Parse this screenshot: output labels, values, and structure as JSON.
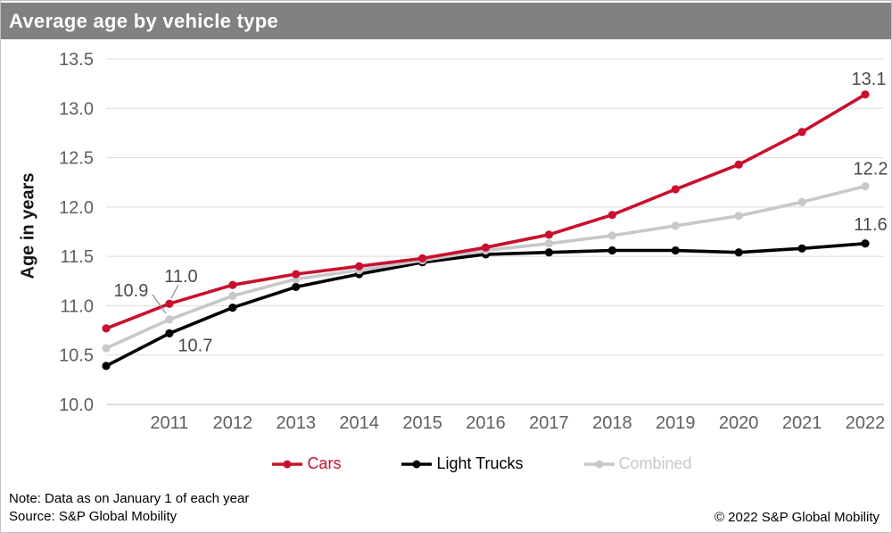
{
  "title": "Average age by vehicle type",
  "colors": {
    "title_bar": "#818181",
    "cars": "#C8102E",
    "light_trucks": "#000000",
    "combined": "#C8C8C8",
    "grid": "#DBDBDB",
    "axis_line": "#BDBDBD",
    "tick_text": "#5F5F5F",
    "annotation_text": "#4A4A4A"
  },
  "footer": {
    "note": "Note: Data as on January 1 of each year",
    "source": "Source: S&P Global Mobility",
    "copyright": "© 2022 S&P Global Mobility"
  },
  "chart_data": {
    "type": "line",
    "title": "Average age by vehicle type",
    "xlabel": "",
    "ylabel": "Age in years",
    "x": [
      2010,
      2011,
      2012,
      2013,
      2014,
      2015,
      2016,
      2017,
      2018,
      2019,
      2020,
      2021,
      2022
    ],
    "x_tick_labels": [
      "2011",
      "2012",
      "2013",
      "2014",
      "2015",
      "2016",
      "2017",
      "2018",
      "2019",
      "2020",
      "2021",
      "2022"
    ],
    "y_ticks": [
      10.0,
      10.5,
      11.0,
      11.5,
      12.0,
      12.5,
      13.0,
      13.5
    ],
    "ylim": [
      10.0,
      13.5
    ],
    "grid": "horizontal",
    "legend_position": "bottom",
    "series": [
      {
        "name": "Cars",
        "color": "#C8102E",
        "values": [
          10.77,
          11.02,
          11.21,
          11.32,
          11.4,
          11.48,
          11.59,
          11.72,
          11.92,
          12.18,
          12.43,
          12.76,
          13.14
        ]
      },
      {
        "name": "Light Trucks",
        "color": "#000000",
        "values": [
          10.39,
          10.72,
          10.98,
          11.19,
          11.32,
          11.44,
          11.52,
          11.54,
          11.56,
          11.56,
          11.54,
          11.58,
          11.63
        ]
      },
      {
        "name": "Combined",
        "color": "#C8C8C8",
        "values": [
          10.57,
          10.86,
          11.1,
          11.27,
          11.36,
          11.46,
          11.56,
          11.63,
          11.71,
          11.81,
          11.91,
          12.05,
          12.21
        ]
      }
    ],
    "annotations": [
      {
        "text": "11.0",
        "series": "Cars",
        "year": 2011
      },
      {
        "text": "10.9",
        "series": "Combined",
        "year": 2011
      },
      {
        "text": "10.7",
        "series": "Light Trucks",
        "year": 2011
      },
      {
        "text": "13.1",
        "series": "Cars",
        "year": 2022
      },
      {
        "text": "12.2",
        "series": "Combined",
        "year": 2022
      },
      {
        "text": "11.6",
        "series": "Light Trucks",
        "year": 2022
      }
    ]
  }
}
